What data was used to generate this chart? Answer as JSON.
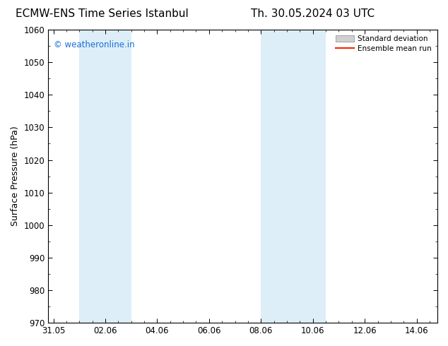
{
  "title_left": "ECMW-ENS Time Series Istanbul",
  "title_right": "Th. 30.05.2024 03 UTC",
  "ylabel": "Surface Pressure (hPa)",
  "xlabel": "",
  "ylim": [
    970,
    1060
  ],
  "yticks": [
    970,
    980,
    990,
    1000,
    1010,
    1020,
    1030,
    1040,
    1050,
    1060
  ],
  "xlim_start": -0.2,
  "xlim_end": 14.8,
  "xtick_positions": [
    0.0,
    2.0,
    4.0,
    6.0,
    8.0,
    10.0,
    12.0,
    14.0
  ],
  "xtick_labels": [
    "31.05",
    "02.06",
    "04.06",
    "06.06",
    "08.06",
    "10.06",
    "12.06",
    "14.06"
  ],
  "shaded_bands": [
    {
      "x_start": 1.0,
      "x_end": 3.0,
      "color": "#ddeef9"
    },
    {
      "x_start": 8.0,
      "x_end": 9.0,
      "color": "#ddeef9"
    },
    {
      "x_start": 9.0,
      "x_end": 10.5,
      "color": "#ddeef9"
    }
  ],
  "watermark_text": "© weatheronline.in",
  "watermark_color": "#1a6fd4",
  "background_color": "#ffffff",
  "plot_bg_color": "#ffffff",
  "legend_std_color": "#d0d0d0",
  "legend_std_edge": "#888888",
  "legend_mean_color": "#ff2200",
  "title_fontsize": 11,
  "tick_fontsize": 8.5,
  "ylabel_fontsize": 9,
  "watermark_fontsize": 8.5
}
